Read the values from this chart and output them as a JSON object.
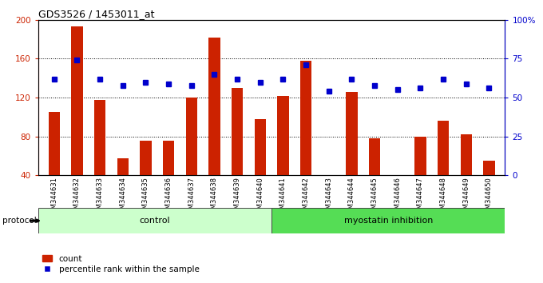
{
  "title": "GDS3526 / 1453011_at",
  "samples": [
    "GSM344631",
    "GSM344632",
    "GSM344633",
    "GSM344634",
    "GSM344635",
    "GSM344636",
    "GSM344637",
    "GSM344638",
    "GSM344639",
    "GSM344640",
    "GSM344641",
    "GSM344642",
    "GSM344643",
    "GSM344644",
    "GSM344645",
    "GSM344646",
    "GSM344647",
    "GSM344648",
    "GSM344649",
    "GSM344650"
  ],
  "counts": [
    105,
    193,
    118,
    58,
    76,
    76,
    120,
    182,
    130,
    98,
    122,
    158,
    40,
    126,
    78,
    40,
    80,
    96,
    82,
    55
  ],
  "percentile_ranks": [
    62,
    74,
    62,
    58,
    60,
    59,
    58,
    65,
    62,
    60,
    62,
    71,
    54,
    62,
    58,
    55,
    56,
    62,
    59,
    56
  ],
  "control_count": 10,
  "myostatin_count": 10,
  "bar_color": "#cc2200",
  "dot_color": "#0000cc",
  "control_bg": "#ccffcc",
  "myostatin_bg": "#55dd55",
  "protocol_label": "protocol",
  "control_label": "control",
  "myostatin_label": "myostatin inhibition",
  "legend_bar_label": "count",
  "legend_dot_label": "percentile rank within the sample",
  "ylim_left": [
    40,
    200
  ],
  "ylim_right": [
    0,
    100
  ],
  "yticks_left": [
    40,
    80,
    120,
    160,
    200
  ],
  "yticks_right": [
    0,
    25,
    50,
    75,
    100
  ],
  "ytick_right_labels": [
    "0",
    "25",
    "50",
    "75",
    "100%"
  ],
  "grid_lines": [
    80,
    120,
    160
  ]
}
